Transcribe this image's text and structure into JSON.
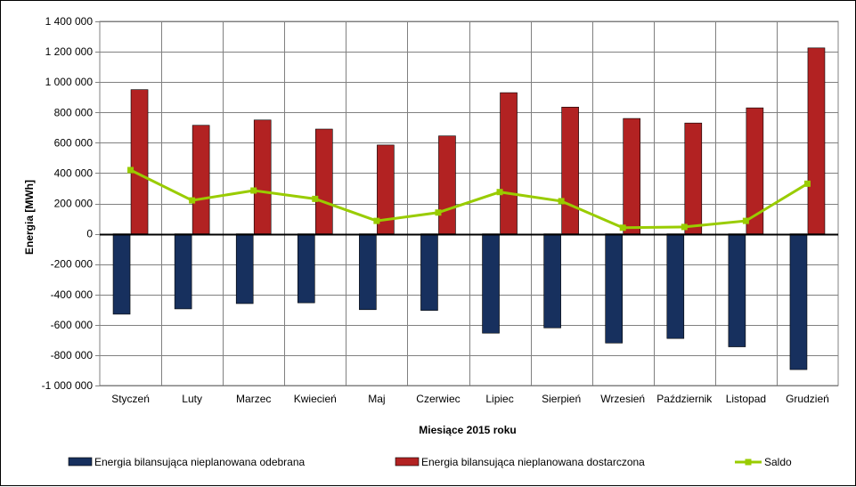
{
  "chart_data": {
    "type": "bar",
    "xlabel": "Miesiące 2015 roku",
    "ylabel": "Energia [MWh]",
    "ylim": [
      -1000000,
      1400000
    ],
    "yticks": [
      1400000,
      1200000,
      1000000,
      800000,
      600000,
      400000,
      200000,
      0,
      -200000,
      -400000,
      -600000,
      -800000,
      -1000000
    ],
    "ytick_labels": [
      "1 400 000",
      "1 200 000",
      "1 000 000",
      "800 000",
      "600 000",
      "400 000",
      "200 000",
      "0",
      "-200 000",
      "-400 000",
      "-600 000",
      "-800 000",
      "-1 000 000"
    ],
    "grid": true,
    "legend_position": "bottom",
    "categories": [
      "Styczeń",
      "Luty",
      "Marzec",
      "Kwiecień",
      "Maj",
      "Czerwiec",
      "Lipiec",
      "Sierpień",
      "Wrzesień",
      "Październik",
      "Listopad",
      "Grudzień"
    ],
    "series": [
      {
        "name": "Energia bilansująca nieplanowana odebrana",
        "type": "bar",
        "color": "#17305e",
        "values": [
          -530000,
          -495000,
          -460000,
          -455000,
          -500000,
          -505000,
          -655000,
          -620000,
          -720000,
          -690000,
          -745000,
          -895000
        ]
      },
      {
        "name": "Energia bilansująca nieplanowana dostarczona",
        "type": "bar",
        "color": "#b22222",
        "values": [
          950000,
          715000,
          750000,
          690000,
          585000,
          645000,
          930000,
          835000,
          760000,
          730000,
          830000,
          1225000
        ]
      },
      {
        "name": "Saldo",
        "type": "line",
        "color": "#99cc00",
        "values": [
          420000,
          220000,
          285000,
          230000,
          85000,
          140000,
          275000,
          215000,
          40000,
          45000,
          85000,
          330000
        ]
      }
    ]
  }
}
